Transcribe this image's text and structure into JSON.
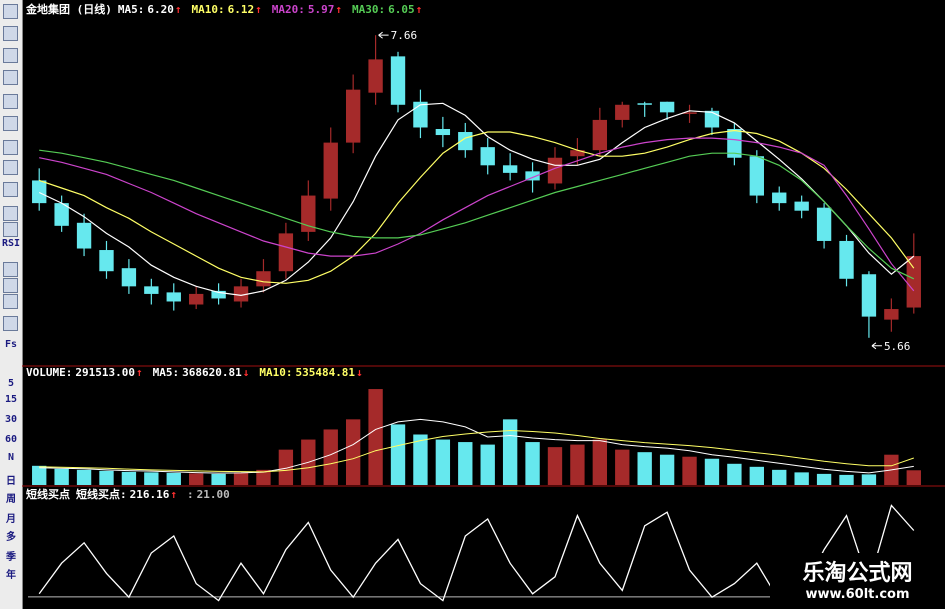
{
  "toolbar": [
    "RSI",
    "Fs",
    "5",
    "15",
    "30",
    "60",
    "N",
    "日",
    "周",
    "月",
    "多",
    "季",
    "年"
  ],
  "watermark": {
    "title": "乐淘公式网",
    "url": "www.60lt.com"
  },
  "chart_data": [
    {
      "type": "candlestick",
      "title": "金地集团 (日线)",
      "up_color": "#a52a2a",
      "down_color": "#66e8ee",
      "open": [
        6.7,
        6.55,
        6.42,
        6.24,
        6.12,
        6.0,
        5.96,
        5.88,
        5.97,
        5.9,
        6.0,
        6.1,
        6.36,
        6.58,
        6.95,
        7.28,
        7.52,
        7.22,
        7.04,
        7.02,
        6.92,
        6.8,
        6.76,
        6.68,
        6.86,
        6.9,
        7.1,
        7.21,
        7.22,
        7.14,
        7.16,
        7.04,
        6.86,
        6.62,
        6.56,
        6.52,
        6.3,
        6.08,
        5.78,
        5.86
      ],
      "high": [
        6.78,
        6.6,
        6.48,
        6.3,
        6.18,
        6.05,
        6.02,
        6.0,
        6.02,
        6.05,
        6.18,
        6.42,
        6.7,
        7.05,
        7.4,
        7.66,
        7.55,
        7.3,
        7.12,
        7.08,
        6.98,
        6.88,
        6.82,
        6.92,
        6.98,
        7.18,
        7.22,
        7.22,
        7.22,
        7.2,
        7.18,
        7.08,
        6.9,
        6.66,
        6.6,
        6.55,
        6.34,
        6.1,
        5.92,
        6.35
      ],
      "low": [
        6.5,
        6.36,
        6.2,
        6.05,
        5.95,
        5.88,
        5.84,
        5.85,
        5.88,
        5.86,
        5.96,
        6.05,
        6.3,
        6.5,
        6.88,
        7.2,
        7.15,
        6.98,
        6.92,
        6.85,
        6.74,
        6.7,
        6.62,
        6.64,
        6.8,
        6.86,
        7.05,
        7.12,
        7.1,
        7.08,
        7.0,
        6.8,
        6.55,
        6.5,
        6.45,
        6.25,
        6.0,
        5.66,
        5.7,
        5.82
      ],
      "close": [
        6.55,
        6.4,
        6.25,
        6.1,
        6.0,
        5.95,
        5.9,
        5.95,
        5.92,
        6.0,
        6.1,
        6.35,
        6.6,
        6.95,
        7.3,
        7.5,
        7.2,
        7.05,
        7.0,
        6.9,
        6.8,
        6.75,
        6.7,
        6.85,
        6.9,
        7.1,
        7.2,
        7.2,
        7.15,
        7.15,
        7.05,
        6.85,
        6.6,
        6.55,
        6.5,
        6.3,
        6.05,
        5.8,
        5.85,
        6.2
      ],
      "lines": [
        {
          "name": "MA5:",
          "value_label": "6.20",
          "trend": "↑",
          "color": "#ffffff",
          "values": [
            6.62,
            6.55,
            6.46,
            6.35,
            6.26,
            6.14,
            6.06,
            6.0,
            5.96,
            5.94,
            5.97,
            6.04,
            6.16,
            6.32,
            6.56,
            6.86,
            7.1,
            7.2,
            7.21,
            7.13,
            6.99,
            6.9,
            6.84,
            6.8,
            6.8,
            6.84,
            6.95,
            7.05,
            7.11,
            7.16,
            7.15,
            7.08,
            6.96,
            6.84,
            6.71,
            6.56,
            6.4,
            6.22,
            6.08,
            6.2
          ]
        },
        {
          "name": "MA10:",
          "value_label": "6.12",
          "trend": "↑",
          "color": "#ffff66",
          "values": [
            6.7,
            6.65,
            6.6,
            6.52,
            6.45,
            6.36,
            6.28,
            6.2,
            6.12,
            6.06,
            6.03,
            6.02,
            6.04,
            6.1,
            6.2,
            6.35,
            6.55,
            6.72,
            6.88,
            6.98,
            7.02,
            7.02,
            6.99,
            6.95,
            6.9,
            6.86,
            6.86,
            6.88,
            6.92,
            6.97,
            7.01,
            7.03,
            7.01,
            6.96,
            6.88,
            6.78,
            6.64,
            6.48,
            6.32,
            6.12
          ]
        },
        {
          "name": "MA20:",
          "value_label": "5.97",
          "trend": "↑",
          "color": "#cc44cc",
          "values": [
            6.85,
            6.82,
            6.78,
            6.74,
            6.68,
            6.62,
            6.55,
            6.48,
            6.42,
            6.36,
            6.3,
            6.26,
            6.22,
            6.2,
            6.2,
            6.22,
            6.28,
            6.35,
            6.44,
            6.52,
            6.6,
            6.66,
            6.72,
            6.78,
            6.83,
            6.88,
            6.92,
            6.95,
            6.97,
            6.98,
            6.98,
            6.97,
            6.95,
            6.92,
            6.88,
            6.8,
            6.6,
            6.38,
            6.15,
            5.97
          ]
        },
        {
          "name": "MA30:",
          "value_label": "6.05",
          "trend": "↑",
          "color": "#55cc55",
          "values": [
            6.9,
            6.88,
            6.85,
            6.82,
            6.78,
            6.74,
            6.7,
            6.65,
            6.6,
            6.55,
            6.5,
            6.45,
            6.4,
            6.36,
            6.33,
            6.32,
            6.32,
            6.34,
            6.38,
            6.42,
            6.47,
            6.52,
            6.57,
            6.62,
            6.66,
            6.7,
            6.74,
            6.78,
            6.82,
            6.86,
            6.88,
            6.88,
            6.86,
            6.8,
            6.7,
            6.56,
            6.4,
            6.25,
            6.12,
            6.05
          ]
        }
      ],
      "annotations": [
        {
          "text": "7.66",
          "x": 15
        },
        {
          "text": "5.66",
          "x": 37
        }
      ],
      "ylim": [
        5.5,
        7.8
      ]
    },
    {
      "type": "bar",
      "series": [
        {
          "name": "VOLUME:",
          "value_label": "291513.00",
          "trend": "↑",
          "values": [
            380000,
            320000,
            300000,
            280000,
            260000,
            250000,
            240000,
            230000,
            220000,
            250000,
            300000,
            700000,
            900000,
            1100000,
            1300000,
            1900000,
            1200000,
            1000000,
            900000,
            850000,
            800000,
            1300000,
            850000,
            750000,
            800000,
            900000,
            700000,
            650000,
            600000,
            560000,
            520000,
            420000,
            360000,
            300000,
            250000,
            220000,
            200000,
            210000,
            600000,
            291513
          ]
        }
      ],
      "lines": [
        {
          "name": "MA5:",
          "value_label": "368620.81",
          "trend": "↓",
          "color": "#ffffff",
          "values": [
            340000,
            330000,
            320000,
            300000,
            285000,
            275000,
            260000,
            245000,
            235000,
            240000,
            255000,
            330000,
            450000,
            600000,
            800000,
            1100000,
            1250000,
            1300000,
            1250000,
            1150000,
            950000,
            980000,
            930000,
            900000,
            880000,
            880000,
            800000,
            760000,
            730000,
            680000,
            600000,
            550000,
            490000,
            430000,
            370000,
            310000,
            270000,
            240000,
            300000,
            368620.81
          ]
        },
        {
          "name": "MA10:",
          "value_label": "535484.81",
          "trend": "↓",
          "color": "#ffff66",
          "values": [
            360000,
            350000,
            340000,
            330000,
            315000,
            300000,
            290000,
            280000,
            270000,
            265000,
            260000,
            290000,
            340000,
            420000,
            520000,
            680000,
            780000,
            880000,
            960000,
            1010000,
            1050000,
            1080000,
            1060000,
            1030000,
            980000,
            920000,
            880000,
            840000,
            810000,
            780000,
            740000,
            690000,
            640000,
            590000,
            530000,
            470000,
            420000,
            380000,
            380000,
            535484.81
          ]
        }
      ],
      "ylim": [
        0,
        2000000
      ]
    },
    {
      "type": "line",
      "title": "短线买点",
      "series": [
        {
          "name": "短线买点:",
          "value_label": "216.16",
          "trend": "↑",
          "color": "#ffffff",
          "values": [
            30,
            120,
            180,
            90,
            20,
            150,
            200,
            60,
            10,
            120,
            30,
            160,
            240,
            100,
            20,
            120,
            190,
            60,
            10,
            200,
            250,
            120,
            30,
            80,
            260,
            120,
            40,
            230,
            270,
            100,
            20,
            60,
            120,
            10,
            30,
            160,
            260,
            60,
            290,
            216.16
          ]
        }
      ],
      "reference": {
        "name": ":",
        "value": 21,
        "value_label": "21.00",
        "color": "#bbbbbb"
      },
      "ylim": [
        0,
        300
      ]
    }
  ]
}
